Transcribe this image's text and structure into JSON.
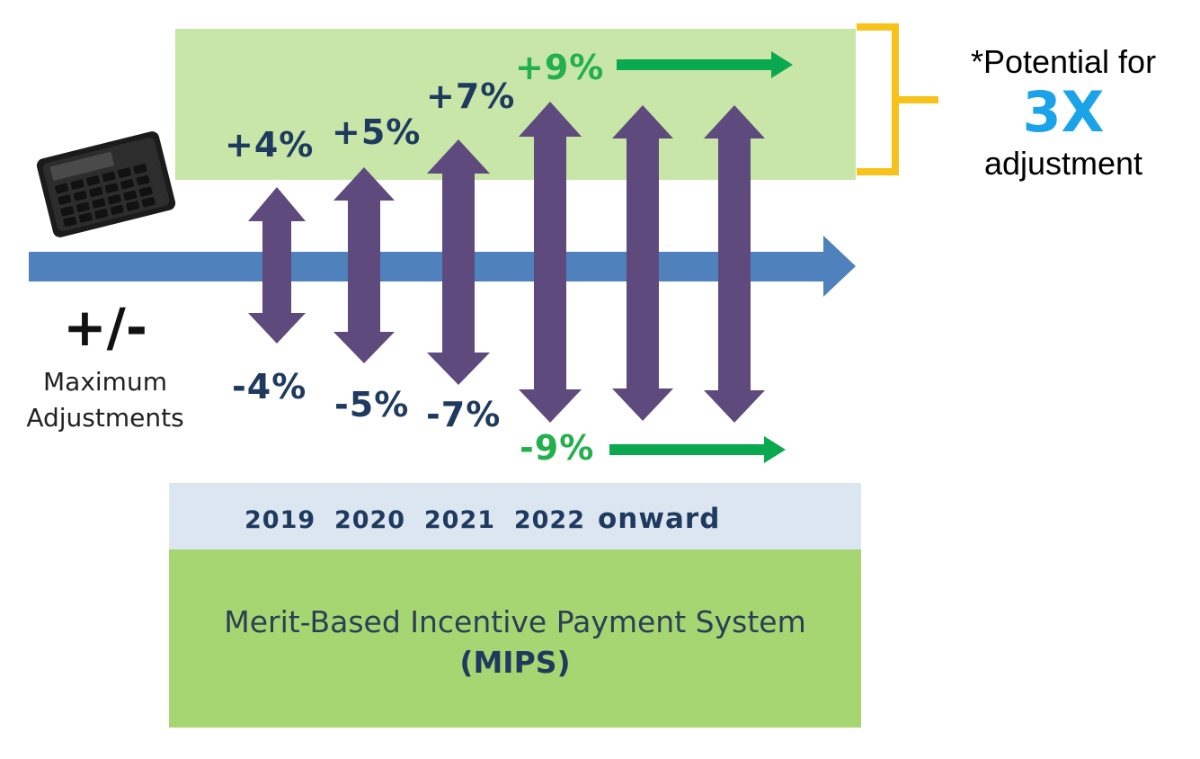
{
  "left_label": {
    "symbol": "+/-",
    "line1": "Maximum",
    "line2": "Adjustments"
  },
  "adjustments": [
    {
      "year": "2019",
      "plus": "+4%",
      "minus": "-4%"
    },
    {
      "year": "2020",
      "plus": "+5%",
      "minus": "-5%"
    },
    {
      "year": "2021",
      "plus": "+7%",
      "minus": "-7%"
    },
    {
      "year": "2022 onward",
      "plus": "+9%",
      "minus": "-9%"
    }
  ],
  "years_prefix": "2019  2020  2021  2022",
  "years_suffix": "onward",
  "potential_note": {
    "line1": "*Potential for",
    "highlight": "3X",
    "line3": "adjustment"
  },
  "program": {
    "name": "Merit-Based Incentive Payment System",
    "abbr": "(MIPS)"
  },
  "colors": {
    "timeline_arrow": "#4f81bd",
    "range_arrow": "#5e4a7c",
    "green_arrow": "#0aa84f",
    "upside_band": "#c8e6a8",
    "year_band": "#dce6f0",
    "program_band": "#a6d672",
    "bracket": "#f7c21a",
    "three_x": "#1aa3e8"
  },
  "icons": {
    "calculator": "calculator-icon"
  }
}
